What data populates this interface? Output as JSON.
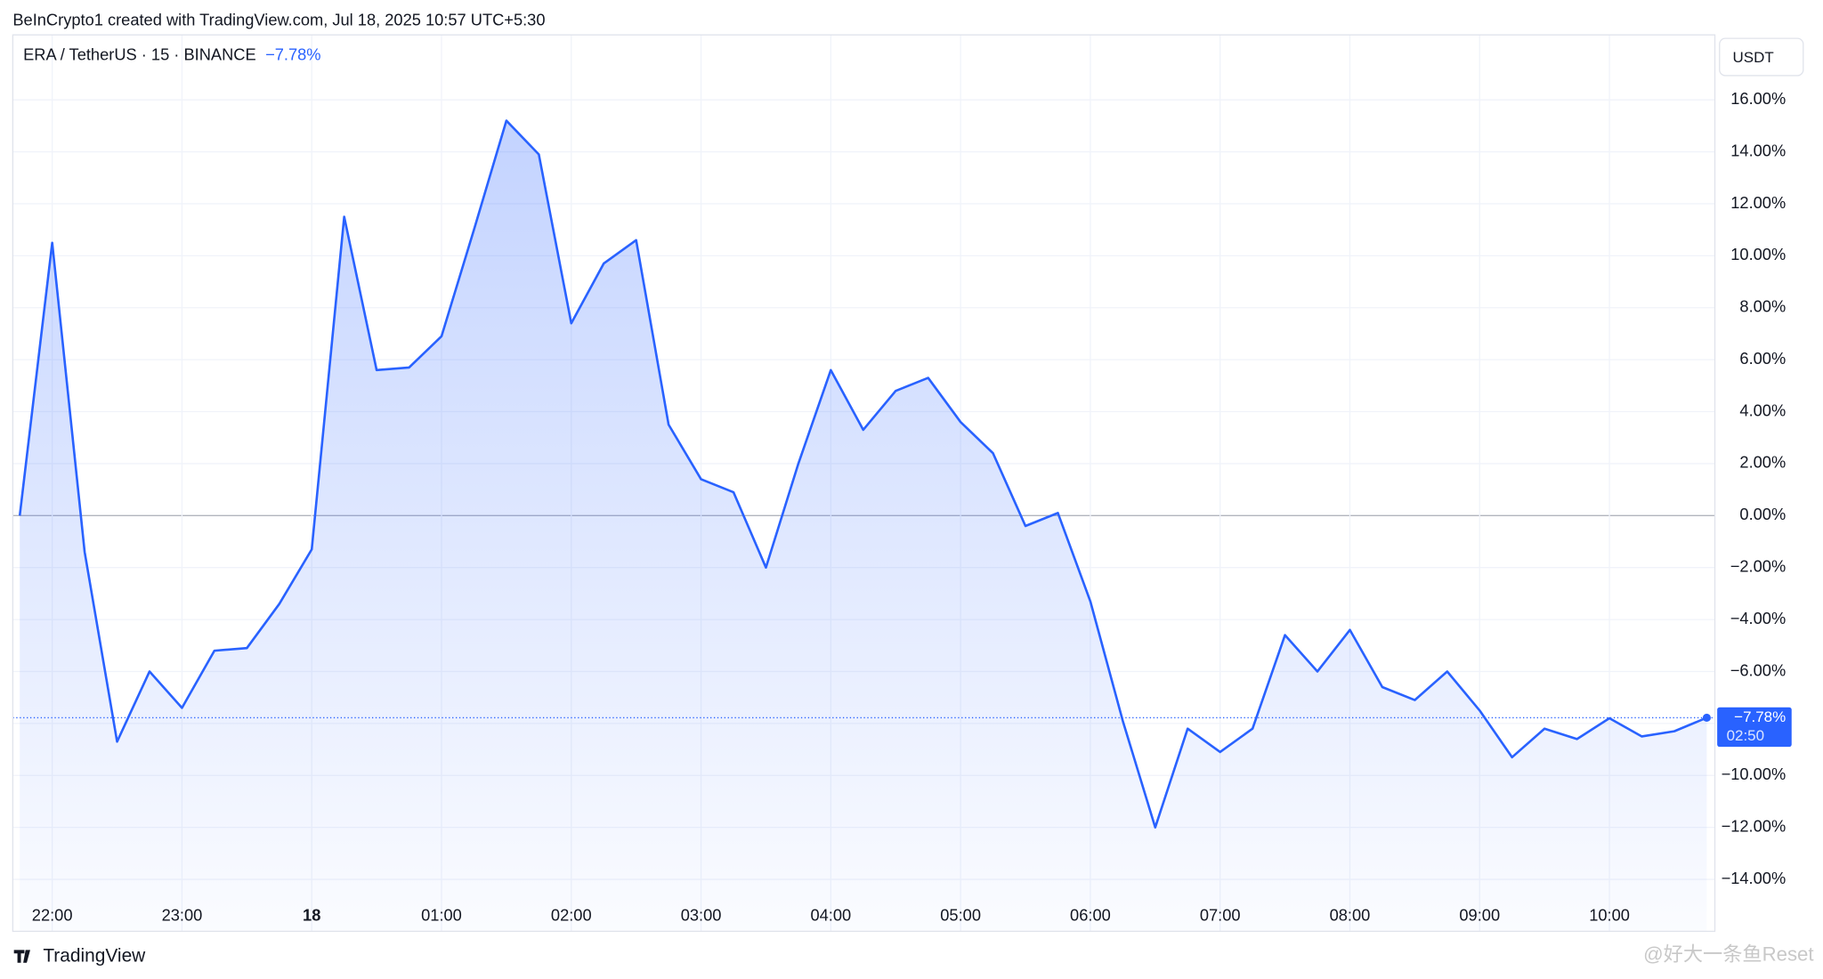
{
  "header": {
    "credit": "BeInCrypto1 created with TradingView.com, Jul 18, 2025 10:57 UTC+5:30",
    "currency": "USDT"
  },
  "footer": {
    "logo": "TradingView",
    "watermark": "@好大一条鱼Reset"
  },
  "chart_data": {
    "type": "area",
    "categories": [
      null,
      "22:00",
      null,
      null,
      null,
      "23:00",
      null,
      null,
      null,
      "18",
      null,
      null,
      null,
      "01:00",
      null,
      null,
      null,
      "02:00",
      null,
      null,
      null,
      "03:00",
      null,
      null,
      null,
      "04:00",
      null,
      null,
      null,
      "05:00",
      null,
      null,
      null,
      "06:00",
      null,
      null,
      null,
      "07:00",
      null,
      null,
      null,
      "08:00",
      null,
      null,
      null,
      "09:00",
      null,
      null,
      null,
      "10:00",
      null,
      null,
      null
    ],
    "series": [
      {
        "name": "ERA / TetherUS · 15 · BINANCE",
        "color": "#2962ff",
        "values": [
          0,
          10.5,
          -1.4,
          -8.7,
          -6.0,
          -7.4,
          -5.2,
          -5.1,
          -3.4,
          -1.3,
          11.5,
          5.6,
          5.7,
          6.9,
          11.0,
          15.2,
          13.9,
          7.4,
          9.7,
          10.6,
          3.5,
          1.4,
          0.9,
          -2.0,
          2.0,
          5.6,
          3.3,
          4.8,
          5.3,
          3.6,
          2.4,
          -0.4,
          0.1,
          -3.3,
          -7.9,
          -12.0,
          -8.2,
          -9.1,
          -8.2,
          -4.6,
          -6.0,
          -4.4,
          -6.6,
          -7.1,
          -6.0,
          -7.5,
          -9.3,
          -8.2,
          -8.6,
          -7.8,
          -8.5,
          -8.3,
          -7.78
        ],
        "value_labels": [
          null,
          null,
          null,
          null,
          null,
          null,
          null,
          null,
          null,
          null,
          null,
          null,
          null,
          null,
          null,
          null,
          null,
          null,
          null,
          null,
          null,
          null,
          null,
          null,
          null,
          null,
          null,
          null,
          null,
          null,
          null,
          null,
          null,
          null,
          null,
          null,
          null,
          null,
          null,
          null,
          null,
          null,
          null,
          null,
          null,
          null,
          null,
          null,
          null,
          null,
          null,
          null,
          "−7.78%"
        ]
      }
    ],
    "countdown": "02:50",
    "ylim": [
      -16,
      18.5
    ],
    "yticks": [
      {
        "value": -14,
        "label": "−14.00%"
      },
      {
        "value": -12,
        "label": "−12.00%"
      },
      {
        "value": -10,
        "label": "−10.00%"
      },
      {
        "value": -8,
        "label": "−8.00%"
      },
      {
        "value": -6,
        "label": "−6.00%"
      },
      {
        "value": -4,
        "label": "−4.00%"
      },
      {
        "value": -2,
        "label": "−2.00%"
      },
      {
        "value": 0,
        "label": "0.00%"
      },
      {
        "value": 2,
        "label": "2.00%"
      },
      {
        "value": 4,
        "label": "4.00%"
      },
      {
        "value": 6,
        "label": "6.00%"
      },
      {
        "value": 8,
        "label": "8.00%"
      },
      {
        "value": 10,
        "label": "10.00%"
      },
      {
        "value": 12,
        "label": "12.00%"
      },
      {
        "value": 14,
        "label": "14.00%"
      },
      {
        "value": 16,
        "label": "16.00%"
      }
    ],
    "grid": true
  }
}
